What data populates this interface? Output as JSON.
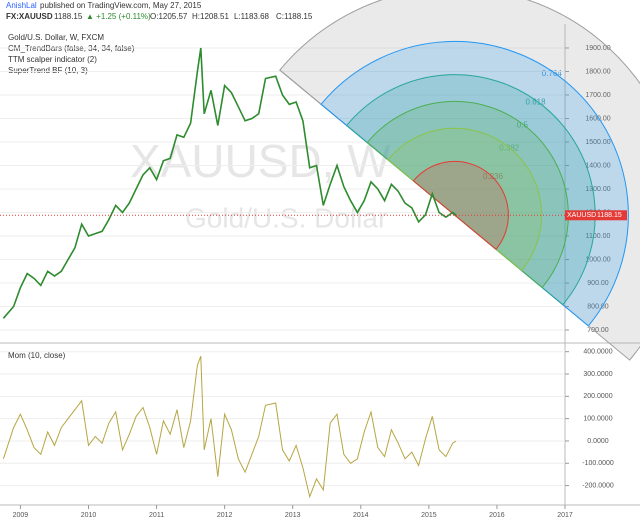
{
  "header": {
    "author": "AnishLal",
    "published": "published on TradingView.com, May 27, 2015",
    "symbol": "FX:XAUUSD",
    "price": "1188.15",
    "change": "▲ +1.25 (+0.11%)",
    "open": "O:1205.57",
    "high": "H:1208.51",
    "low": "L:1183.68",
    "close": "C:1188.15"
  },
  "chart_data": [
    {
      "type": "line",
      "title": "Gold/U.S. Dollar, W, FXCM",
      "indicators": [
        "CM_TrendBars (false, 34, 34, false)",
        "TTM scalper indicator (2)",
        "SuperTrend BF (10, 3)"
      ],
      "watermark": [
        "XAUUSD, W",
        "Gold/U.S. Dollar"
      ],
      "symbol_label": "XAUUSD",
      "last_price": 1188.15,
      "color": "#2e8b2e",
      "x": [
        2008.75,
        2008.9,
        2009.0,
        2009.1,
        2009.2,
        2009.3,
        2009.4,
        2009.5,
        2009.6,
        2009.7,
        2009.8,
        2009.9,
        2010.0,
        2010.1,
        2010.2,
        2010.3,
        2010.4,
        2010.5,
        2010.6,
        2010.7,
        2010.8,
        2010.9,
        2011.0,
        2011.1,
        2011.2,
        2011.3,
        2011.4,
        2011.5,
        2011.6,
        2011.65,
        2011.7,
        2011.8,
        2011.9,
        2012.0,
        2012.1,
        2012.2,
        2012.3,
        2012.4,
        2012.5,
        2012.6,
        2012.75,
        2012.85,
        2012.95,
        2013.05,
        2013.15,
        2013.25,
        2013.35,
        2013.45,
        2013.55,
        2013.65,
        2013.75,
        2013.85,
        2013.95,
        2014.05,
        2014.15,
        2014.25,
        2014.35,
        2014.45,
        2014.55,
        2014.65,
        2014.75,
        2014.85,
        2014.95,
        2015.05,
        2015.15,
        2015.25,
        2015.35,
        2015.4
      ],
      "values": [
        750,
        800,
        880,
        940,
        920,
        890,
        950,
        930,
        950,
        1000,
        1050,
        1150,
        1100,
        1110,
        1120,
        1170,
        1230,
        1200,
        1240,
        1300,
        1360,
        1390,
        1340,
        1420,
        1430,
        1530,
        1520,
        1580,
        1800,
        1900,
        1620,
        1720,
        1570,
        1740,
        1710,
        1650,
        1590,
        1600,
        1620,
        1770,
        1780,
        1700,
        1660,
        1670,
        1590,
        1390,
        1400,
        1230,
        1320,
        1400,
        1310,
        1250,
        1200,
        1250,
        1330,
        1300,
        1250,
        1320,
        1290,
        1240,
        1220,
        1160,
        1190,
        1280,
        1200,
        1180,
        1200,
        1188.15
      ],
      "xlim": [
        2008.7,
        2017.0
      ],
      "xticks": [
        2009,
        2010,
        2011,
        2012,
        2013,
        2014,
        2015,
        2016,
        2017
      ],
      "ylim": [
        649,
        2002
      ],
      "yticks": [
        {
          "value": 700,
          "label": "700.00"
        },
        {
          "value": 800,
          "label": "800.00"
        },
        {
          "value": 900,
          "label": "900.00"
        },
        {
          "value": 1000,
          "label": "1000.00"
        },
        {
          "value": 1100,
          "label": "1100.00"
        },
        {
          "value": 1200,
          "label": "1200.00"
        },
        {
          "value": 1300,
          "label": "1300.00"
        },
        {
          "value": 1400,
          "label": "1400.00"
        },
        {
          "value": 1500,
          "label": "1500.00"
        },
        {
          "value": 1600,
          "label": "1600.00"
        },
        {
          "value": 1700,
          "label": "1700.00"
        },
        {
          "value": 1800,
          "label": "1800.00"
        },
        {
          "value": 1900,
          "label": "1900.00"
        }
      ],
      "fib_arc": {
        "center": [
          2015.38,
          1189
        ],
        "edge": [
          2012.81,
          1806
        ],
        "levels": [
          {
            "level": 1,
            "color": "#9e9e9e"
          },
          {
            "level": 0.764,
            "color": "#2196f3"
          },
          {
            "level": 0.618,
            "color": "#26a69a"
          },
          {
            "level": 0.5,
            "color": "#4caf50"
          },
          {
            "level": 0.382,
            "color": "#8bc34a"
          },
          {
            "level": 0.236,
            "color": "#e53935"
          }
        ]
      }
    },
    {
      "type": "line",
      "title": "Mom (10, close)",
      "color": "#b5a642",
      "x": [
        2008.75,
        2008.9,
        2009.0,
        2009.1,
        2009.2,
        2009.3,
        2009.4,
        2009.5,
        2009.6,
        2009.7,
        2009.8,
        2009.9,
        2010.0,
        2010.1,
        2010.2,
        2010.3,
        2010.4,
        2010.5,
        2010.6,
        2010.7,
        2010.8,
        2010.9,
        2011.0,
        2011.1,
        2011.2,
        2011.3,
        2011.4,
        2011.5,
        2011.6,
        2011.65,
        2011.7,
        2011.8,
        2011.9,
        2012.0,
        2012.1,
        2012.2,
        2012.3,
        2012.4,
        2012.5,
        2012.6,
        2012.75,
        2012.85,
        2012.95,
        2013.05,
        2013.15,
        2013.25,
        2013.35,
        2013.45,
        2013.55,
        2013.65,
        2013.75,
        2013.85,
        2013.95,
        2014.05,
        2014.15,
        2014.25,
        2014.35,
        2014.45,
        2014.55,
        2014.65,
        2014.75,
        2014.85,
        2014.95,
        2015.05,
        2015.15,
        2015.25,
        2015.35,
        2015.4
      ],
      "values": [
        -80,
        60,
        120,
        50,
        -30,
        -60,
        40,
        -20,
        60,
        100,
        140,
        180,
        -20,
        20,
        -10,
        80,
        130,
        -40,
        30,
        110,
        150,
        60,
        -60,
        90,
        30,
        140,
        -30,
        90,
        340,
        380,
        -40,
        100,
        -160,
        120,
        50,
        -80,
        -140,
        -60,
        20,
        160,
        170,
        -40,
        -90,
        -20,
        -120,
        -250,
        -170,
        -220,
        80,
        120,
        -60,
        -100,
        -80,
        40,
        130,
        -30,
        -70,
        50,
        -10,
        -80,
        -50,
        -110,
        10,
        110,
        -40,
        -70,
        -10,
        0
      ],
      "xlim": [
        2008.7,
        2017.0
      ],
      "ylim": [
        -287,
        430
      ],
      "yticks": [
        {
          "value": 400,
          "label": "400.0000"
        },
        {
          "value": 300,
          "label": "300.0000"
        },
        {
          "value": 200,
          "label": "200.0000"
        },
        {
          "value": 100,
          "label": "100.0000"
        },
        {
          "value": 0,
          "label": "0.0000"
        },
        {
          "value": -100,
          "label": "-100.0000"
        },
        {
          "value": -200,
          "label": "-200.0000"
        }
      ]
    }
  ]
}
